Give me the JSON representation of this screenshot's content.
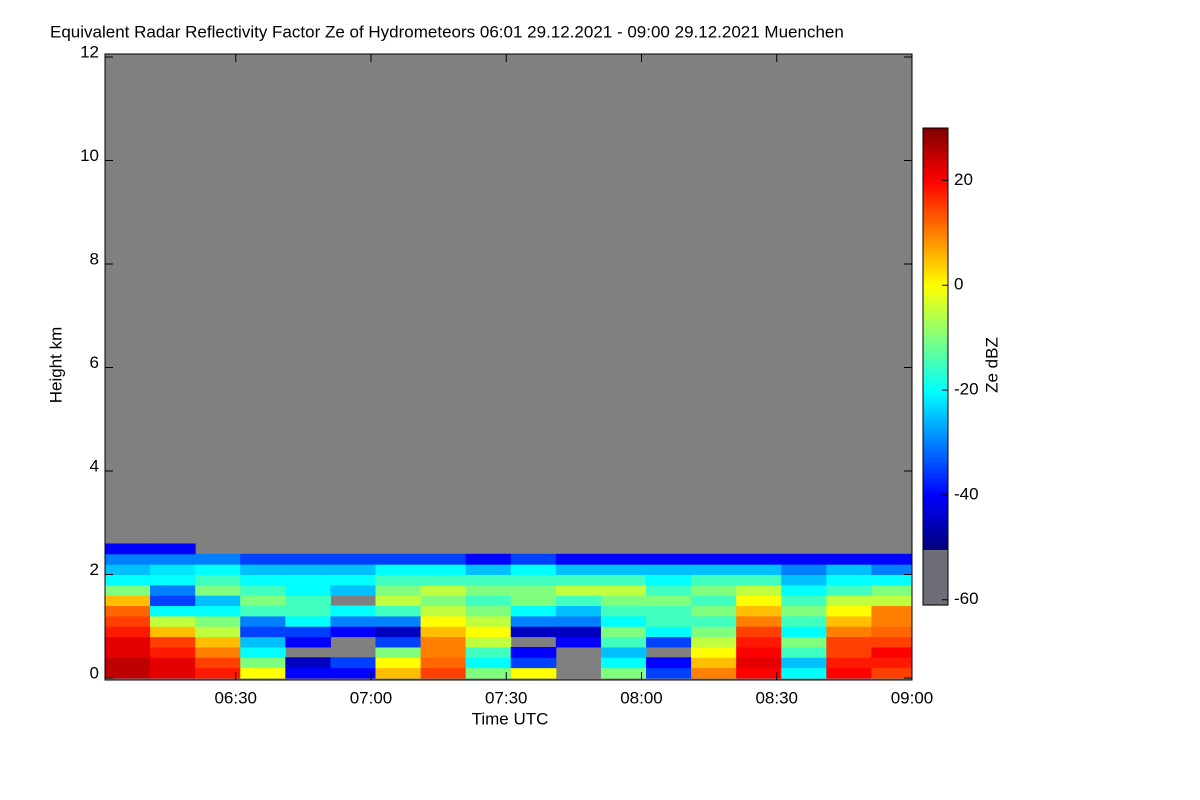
{
  "chart_data": {
    "type": "heatmap",
    "title": "Equivalent Radar Reflectivity Factor Ze of Hydrometeors   06:01 29.12.2021 - 09:00 29.12.2021 Muenchen",
    "x_label": "Time UTC",
    "y_label": "Height km",
    "colorbar_label": "Ze dBZ",
    "xlim": [
      "06:01",
      "09:00"
    ],
    "xticks": [
      "06:30",
      "07:00",
      "07:30",
      "08:00",
      "08:30",
      "09:00"
    ],
    "ylim": [
      0,
      12
    ],
    "yticks": [
      0,
      2,
      4,
      6,
      8,
      10,
      12
    ],
    "zlim": [
      -61,
      30
    ],
    "zticks": [
      -60,
      -40,
      -20,
      0,
      20
    ],
    "no_data_color": "#808080",
    "x": [
      "06:06",
      "06:16",
      "06:26",
      "06:36",
      "06:46",
      "06:56",
      "07:06",
      "07:16",
      "07:26",
      "07:36",
      "07:46",
      "07:56",
      "08:06",
      "08:16",
      "08:26",
      "08:36",
      "08:46",
      "08:56"
    ],
    "y": [
      0.1,
      0.3,
      0.5,
      0.7,
      0.9,
      1.1,
      1.3,
      1.5,
      1.7,
      1.9,
      2.1,
      2.3,
      2.5,
      2.7
    ],
    "z": [
      [
        25,
        25,
        22,
        22,
        18,
        15,
        12,
        5,
        -10,
        -20,
        -25,
        -30,
        -40,
        null
      ],
      [
        22,
        22,
        18,
        15,
        5,
        -5,
        -20,
        -35,
        -30,
        -20,
        -22,
        -30,
        -40,
        null
      ],
      [
        18,
        15,
        10,
        5,
        -5,
        -10,
        -20,
        -25,
        -10,
        -15,
        -20,
        -30,
        null,
        null
      ],
      [
        0,
        -10,
        -20,
        -25,
        -35,
        -30,
        -15,
        -10,
        -15,
        -20,
        -25,
        -35,
        null,
        null
      ],
      [
        -40,
        -45,
        null,
        -40,
        -35,
        -20,
        -15,
        -15,
        -20,
        -20,
        -25,
        -35,
        null,
        null
      ],
      [
        -40,
        -35,
        null,
        null,
        -40,
        -30,
        -20,
        null,
        -25,
        -20,
        -25,
        -35,
        null,
        null
      ],
      [
        5,
        0,
        -10,
        -35,
        -45,
        -30,
        -15,
        -5,
        -10,
        -15,
        -20,
        -35,
        null,
        null
      ],
      [
        15,
        12,
        10,
        10,
        5,
        0,
        -5,
        -10,
        -5,
        -15,
        -20,
        -35,
        null,
        null
      ],
      [
        -10,
        -20,
        -15,
        -5,
        0,
        -5,
        -10,
        -15,
        -10,
        -15,
        -25,
        -40,
        null,
        null
      ],
      [
        0,
        -35,
        -40,
        null,
        -45,
        -30,
        -20,
        -10,
        -10,
        -15,
        -20,
        -35,
        null,
        null
      ],
      [
        null,
        null,
        null,
        -40,
        -45,
        -30,
        -25,
        -15,
        -5,
        -15,
        -25,
        -40,
        null,
        null
      ],
      [
        -10,
        -20,
        -25,
        -15,
        -10,
        -20,
        -15,
        -10,
        -5,
        -15,
        -25,
        -40,
        null,
        null
      ],
      [
        -35,
        -40,
        null,
        -35,
        -20,
        -15,
        -15,
        -10,
        -15,
        -20,
        -25,
        -40,
        null,
        null
      ],
      [
        10,
        5,
        0,
        -5,
        -10,
        -15,
        -10,
        -15,
        -10,
        -15,
        -25,
        -40,
        null,
        null
      ],
      [
        20,
        22,
        20,
        18,
        15,
        10,
        5,
        0,
        -5,
        -15,
        -25,
        -40,
        null,
        null
      ],
      [
        -20,
        -25,
        -15,
        -10,
        -20,
        -15,
        -10,
        -15,
        -20,
        -25,
        -30,
        -40,
        null,
        null
      ],
      [
        20,
        18,
        15,
        15,
        10,
        5,
        0,
        -5,
        -15,
        -20,
        -25,
        -40,
        null,
        null
      ],
      [
        15,
        18,
        20,
        15,
        12,
        10,
        10,
        -5,
        -10,
        -20,
        -30,
        -40,
        null,
        null
      ]
    ]
  }
}
